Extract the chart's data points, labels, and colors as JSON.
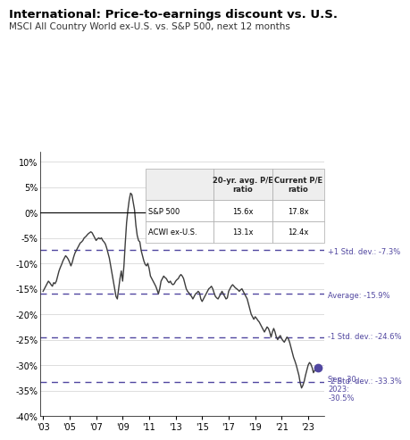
{
  "title": "International: Price-to-earnings discount vs. U.S.",
  "subtitle": "MSCI All Country World ex-U.S. vs. S&P 500, next 12 months",
  "title_fontsize": 9.5,
  "subtitle_fontsize": 7.5,
  "ylim": [
    -40,
    12
  ],
  "yticks": [
    10,
    5,
    0,
    -5,
    -10,
    -15,
    -20,
    -25,
    -30,
    -35,
    -40
  ],
  "xticks_years": [
    2003,
    2005,
    2007,
    2009,
    2011,
    2013,
    2015,
    2017,
    2019,
    2021,
    2023
  ],
  "xtick_labels": [
    "'03",
    "'05",
    "'07",
    "'09",
    "'11",
    "'13",
    "'15",
    "'17",
    "'19",
    "'21",
    "'23"
  ],
  "hlines": {
    "avg": -15.9,
    "plus1std": -7.3,
    "minus1std": -24.6,
    "minus2std": -33.3
  },
  "hline_color": "#5147a0",
  "hline_labels": {
    "avg": "Average: -15.9%",
    "plus1std": "+1 Std. dev.: -7.3%",
    "minus1std": "-1 Std. dev.: -24.6%",
    "minus2std": "-2 Std. dev.: -33.3%"
  },
  "endpoint_value": -30.5,
  "endpoint_year": 2023.75,
  "endpoint_color": "#5147a0",
  "endpoint_label": "Sep. 30,\n2023:\n-30.5%",
  "line_color": "#3d3d3d",
  "line_width": 1.0,
  "table_data": {
    "headers": [
      "",
      "20-yr. avg. P/E\nratio",
      "Current P/E\nratio"
    ],
    "rows": [
      [
        "S&P 500",
        "15.6x",
        "17.8x"
      ],
      [
        "ACWI ex-U.S.",
        "13.1x",
        "12.4x"
      ]
    ]
  },
  "background_color": "#ffffff",
  "grid_color": "#d0d0d0",
  "series_x": [
    2003.0,
    2003.1,
    2003.2,
    2003.3,
    2003.4,
    2003.5,
    2003.6,
    2003.7,
    2003.8,
    2003.9,
    2004.0,
    2004.1,
    2004.2,
    2004.3,
    2004.4,
    2004.5,
    2004.6,
    2004.7,
    2004.8,
    2004.9,
    2005.0,
    2005.1,
    2005.2,
    2005.3,
    2005.4,
    2005.5,
    2005.6,
    2005.7,
    2005.8,
    2005.9,
    2006.0,
    2006.1,
    2006.2,
    2006.3,
    2006.4,
    2006.5,
    2006.6,
    2006.7,
    2006.8,
    2006.9,
    2007.0,
    2007.1,
    2007.2,
    2007.3,
    2007.4,
    2007.5,
    2007.6,
    2007.7,
    2007.8,
    2007.9,
    2008.0,
    2008.1,
    2008.2,
    2008.3,
    2008.4,
    2008.5,
    2008.6,
    2008.7,
    2008.8,
    2008.9,
    2009.0,
    2009.1,
    2009.2,
    2009.3,
    2009.4,
    2009.5,
    2009.6,
    2009.7,
    2009.8,
    2009.9,
    2010.0,
    2010.1,
    2010.2,
    2010.3,
    2010.4,
    2010.5,
    2010.6,
    2010.7,
    2010.8,
    2010.9,
    2011.0,
    2011.1,
    2011.2,
    2011.3,
    2011.4,
    2011.5,
    2011.6,
    2011.7,
    2011.8,
    2011.9,
    2012.0,
    2012.1,
    2012.2,
    2012.3,
    2012.4,
    2012.5,
    2012.6,
    2012.7,
    2012.8,
    2012.9,
    2013.0,
    2013.1,
    2013.2,
    2013.3,
    2013.4,
    2013.5,
    2013.6,
    2013.7,
    2013.8,
    2013.9,
    2014.0,
    2014.1,
    2014.2,
    2014.3,
    2014.4,
    2014.5,
    2014.6,
    2014.7,
    2014.8,
    2014.9,
    2015.0,
    2015.1,
    2015.2,
    2015.3,
    2015.4,
    2015.5,
    2015.6,
    2015.7,
    2015.8,
    2015.9,
    2016.0,
    2016.1,
    2016.2,
    2016.3,
    2016.4,
    2016.5,
    2016.6,
    2016.7,
    2016.8,
    2016.9,
    2017.0,
    2017.1,
    2017.2,
    2017.3,
    2017.4,
    2017.5,
    2017.6,
    2017.7,
    2017.8,
    2017.9,
    2018.0,
    2018.1,
    2018.2,
    2018.3,
    2018.4,
    2018.5,
    2018.6,
    2018.7,
    2018.8,
    2018.9,
    2019.0,
    2019.1,
    2019.2,
    2019.3,
    2019.4,
    2019.5,
    2019.6,
    2019.7,
    2019.8,
    2019.9,
    2020.0,
    2020.1,
    2020.2,
    2020.3,
    2020.4,
    2020.5,
    2020.6,
    2020.7,
    2020.8,
    2020.9,
    2021.0,
    2021.1,
    2021.2,
    2021.3,
    2021.4,
    2021.5,
    2021.6,
    2021.7,
    2021.8,
    2021.9,
    2022.0,
    2022.1,
    2022.2,
    2022.3,
    2022.4,
    2022.5,
    2022.6,
    2022.7,
    2022.8,
    2022.9,
    2023.0,
    2023.1,
    2023.2,
    2023.3,
    2023.4,
    2023.5,
    2023.6,
    2023.75
  ],
  "series_y": [
    -15.5,
    -15.0,
    -14.5,
    -14.0,
    -13.5,
    -13.8,
    -14.2,
    -14.5,
    -13.8,
    -14.0,
    -13.5,
    -12.5,
    -11.5,
    -10.8,
    -10.2,
    -9.5,
    -9.0,
    -8.5,
    -8.8,
    -9.2,
    -9.8,
    -10.5,
    -9.8,
    -8.8,
    -8.0,
    -7.5,
    -7.0,
    -6.5,
    -6.0,
    -5.8,
    -5.5,
    -5.0,
    -4.8,
    -4.5,
    -4.2,
    -4.0,
    -3.8,
    -4.0,
    -4.5,
    -5.0,
    -5.5,
    -5.2,
    -5.0,
    -5.2,
    -5.0,
    -5.5,
    -5.8,
    -6.2,
    -7.0,
    -8.0,
    -9.0,
    -10.5,
    -12.0,
    -13.5,
    -15.0,
    -16.5,
    -17.0,
    -15.0,
    -13.0,
    -11.5,
    -13.5,
    -10.5,
    -6.0,
    -2.0,
    0.5,
    2.5,
    3.8,
    3.5,
    2.0,
    0.5,
    -2.5,
    -4.5,
    -5.5,
    -5.8,
    -7.5,
    -8.5,
    -9.5,
    -10.2,
    -10.5,
    -10.0,
    -11.0,
    -12.5,
    -13.0,
    -13.5,
    -14.0,
    -14.5,
    -15.2,
    -16.0,
    -15.0,
    -13.5,
    -13.0,
    -12.5,
    -12.8,
    -13.0,
    -13.5,
    -13.8,
    -13.5,
    -14.0,
    -14.2,
    -14.0,
    -13.5,
    -13.2,
    -13.0,
    -12.5,
    -12.2,
    -12.5,
    -13.0,
    -14.0,
    -15.0,
    -15.5,
    -15.8,
    -16.2,
    -16.5,
    -17.0,
    -16.5,
    -16.0,
    -15.8,
    -15.5,
    -15.8,
    -17.0,
    -17.5,
    -17.0,
    -16.5,
    -16.0,
    -15.5,
    -15.0,
    -14.8,
    -14.5,
    -15.0,
    -15.8,
    -16.5,
    -16.8,
    -17.0,
    -16.5,
    -16.0,
    -15.5,
    -16.0,
    -16.5,
    -17.0,
    -16.8,
    -15.5,
    -15.0,
    -14.5,
    -14.2,
    -14.5,
    -14.8,
    -15.0,
    -15.2,
    -15.5,
    -15.2,
    -15.0,
    -15.5,
    -16.0,
    -16.5,
    -17.0,
    -18.0,
    -19.0,
    -20.0,
    -20.5,
    -21.0,
    -20.5,
    -20.8,
    -21.2,
    -21.5,
    -22.0,
    -22.5,
    -23.0,
    -23.5,
    -23.0,
    -22.5,
    -22.8,
    -23.5,
    -24.5,
    -23.5,
    -22.8,
    -23.5,
    -24.5,
    -25.0,
    -24.5,
    -24.2,
    -24.8,
    -25.2,
    -25.5,
    -25.0,
    -24.5,
    -24.8,
    -25.5,
    -26.5,
    -27.5,
    -28.5,
    -29.2,
    -30.0,
    -31.0,
    -32.0,
    -33.5,
    -34.5,
    -34.0,
    -33.2,
    -32.0,
    -31.0,
    -30.0,
    -29.5,
    -29.8,
    -30.5,
    -31.5,
    -31.0,
    -30.5,
    -30.5
  ]
}
